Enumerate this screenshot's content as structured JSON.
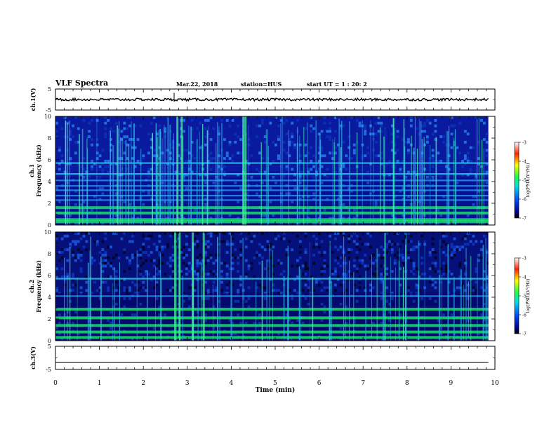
{
  "header": {
    "title": "VLF Spectra",
    "date": "Mar.22, 2018",
    "station": "station=HUS",
    "start": "start UT =  1 : 20: 2"
  },
  "chart_data": [
    {
      "type": "line",
      "ylabel": "ch.1(V)",
      "ylim": [
        -5,
        5
      ],
      "yticks": [
        "5",
        "-5"
      ],
      "description_value": 0
    },
    {
      "type": "heatmap",
      "ylabel_top": "ch.1",
      "ylabel": "Frequency (kHz)",
      "yticks": [
        "0",
        "2",
        "4",
        "6",
        "8",
        "10"
      ],
      "ylim": [
        0,
        10
      ],
      "colorbar": {
        "label": "log(PSD)(V²/Hz)",
        "ticks": [
          "-3",
          "-4",
          "-5",
          "-6",
          "-7"
        ],
        "range": [
          -7,
          -3
        ]
      },
      "bands_khz": [
        0.3,
        0.5,
        1.1,
        1.6,
        2.3,
        2.7,
        3.2,
        3.6,
        4.1,
        4.7,
        5.7
      ],
      "bursts_min": [
        2.75,
        2.85,
        4.25,
        4.3
      ]
    },
    {
      "type": "heatmap",
      "ylabel_top": "ch.2",
      "ylabel": "Frequency (kHz)",
      "yticks": [
        "0",
        "2",
        "4",
        "6",
        "8",
        "10"
      ],
      "ylim": [
        0,
        10
      ],
      "colorbar": {
        "label": "log(PSD)(V²/Hz)",
        "ticks": [
          "-3",
          "-4",
          "-5",
          "-6",
          "-7"
        ],
        "range": [
          -7,
          -3
        ]
      },
      "bands_khz": [
        0.3,
        0.8,
        1.4,
        2.1,
        2.9,
        4.1,
        5.7
      ],
      "bursts_min": [
        2.7,
        2.8,
        3.1,
        3.35
      ]
    },
    {
      "type": "line",
      "ylabel": "ch.3(V)",
      "ylim": [
        -5,
        5
      ],
      "yticks": [
        "5",
        "-5"
      ],
      "description_value": -2
    }
  ],
  "xaxis": {
    "label": "Time (min)",
    "ticks": [
      "0",
      "1",
      "2",
      "3",
      "4",
      "5",
      "6",
      "7",
      "8",
      "9",
      "10"
    ],
    "range": [
      0,
      10
    ],
    "data_end": 9.85
  }
}
